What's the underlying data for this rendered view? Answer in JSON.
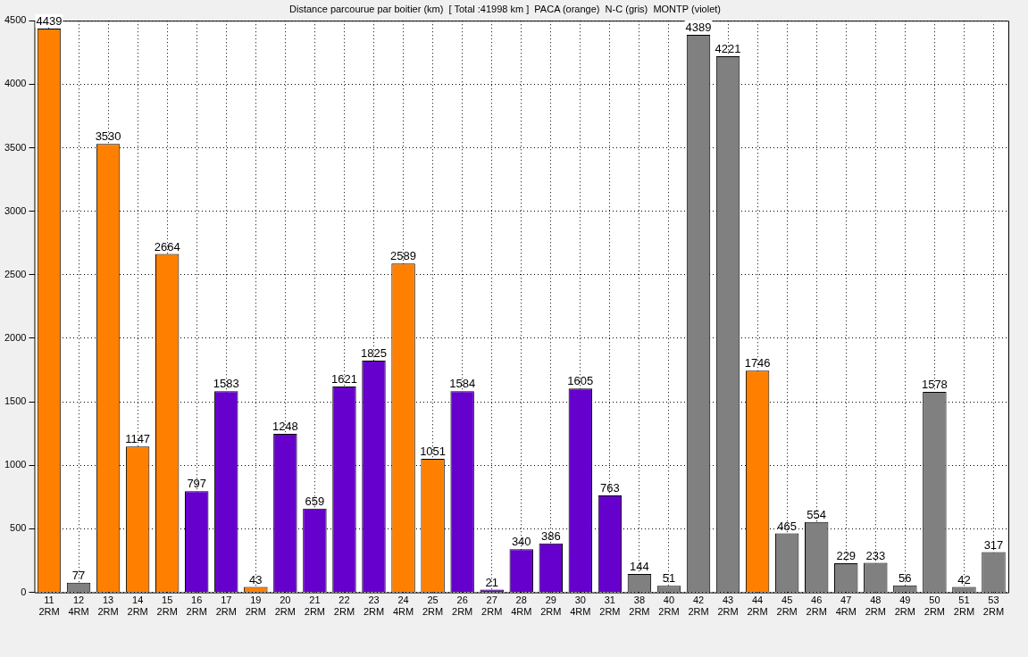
{
  "chart_data": {
    "type": "bar",
    "title": "Distance parcourue par boitier (km)  [ Total :41998 km ]  PACA (orange)  N-C (gris)  MONTP (violet)",
    "categories": [
      "11\n2RM",
      "12\n4RM",
      "13\n2RM",
      "14\n2RM",
      "15\n2RM",
      "16\n2RM",
      "17\n2RM",
      "19\n2RM",
      "20\n2RM",
      "21\n2RM",
      "22\n2RM",
      "23\n2RM",
      "24\n4RM",
      "25\n2RM",
      "26\n2RM",
      "27\n2RM",
      "28\n4RM",
      "29\n2RM",
      "30\n4RM",
      "31\n2RM",
      "38\n2RM",
      "40\n2RM",
      "42\n2RM",
      "43\n2RM",
      "44\n2RM",
      "45\n2RM",
      "46\n2RM",
      "47\n4RM",
      "48\n2RM",
      "49\n2RM",
      "50\n2RM",
      "51\n2RM",
      "53\n2RM"
    ],
    "values": [
      4439,
      77,
      3530,
      1147,
      2664,
      797,
      1583,
      43,
      1248,
      659,
      1621,
      1825,
      2589,
      1051,
      1584,
      21,
      340,
      386,
      1605,
      763,
      144,
      51,
      4389,
      4221,
      1746,
      465,
      554,
      229,
      233,
      56,
      1578,
      42,
      317
    ],
    "colors": [
      "#ff8000",
      "#808080",
      "#ff8000",
      "#ff8000",
      "#ff8000",
      "#6600cc",
      "#6600cc",
      "#ff8000",
      "#6600cc",
      "#6600cc",
      "#6600cc",
      "#6600cc",
      "#ff8000",
      "#ff8000",
      "#6600cc",
      "#6600cc",
      "#6600cc",
      "#6600cc",
      "#6600cc",
      "#6600cc",
      "#808080",
      "#808080",
      "#808080",
      "#808080",
      "#ff8000",
      "#808080",
      "#808080",
      "#808080",
      "#808080",
      "#808080",
      "#808080",
      "#808080",
      "#808080"
    ],
    "ylim": [
      0,
      4500
    ],
    "yticks": [
      0,
      500,
      1000,
      1500,
      2000,
      2500,
      3000,
      3500,
      4000,
      4500
    ],
    "grid": true,
    "data_labels": true
  }
}
